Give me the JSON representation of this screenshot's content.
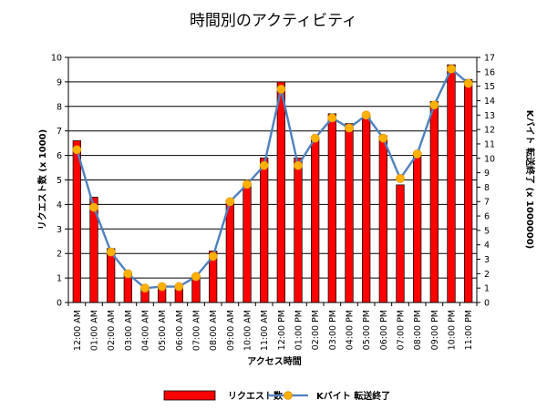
{
  "chart_data": {
    "type": "bar",
    "title": "時間別のアクティビティ",
    "xlabel": "アクセス時間",
    "ylabel": "リクエスト数 (x 1000)",
    "y2label": "Kバイト 転送終了 (x 1000000)",
    "categories": [
      "12:00 AM",
      "01:00 AM",
      "02:00 AM",
      "03:00 AM",
      "04:00 AM",
      "05:00 AM",
      "06:00 AM",
      "07:00 AM",
      "08:00 AM",
      "09:00 AM",
      "10:00 AM",
      "11:00 AM",
      "12:00 PM",
      "01:00 PM",
      "02:00 PM",
      "03:00 PM",
      "04:00 PM",
      "05:00 PM",
      "06:00 PM",
      "07:00 PM",
      "08:00 PM",
      "09:00 PM",
      "10:00 PM",
      "11:00 PM"
    ],
    "ylim": [
      0,
      10
    ],
    "y2lim": [
      0,
      17
    ],
    "yticks": [
      "0",
      "1",
      "2",
      "3",
      "4",
      "5",
      "6",
      "7",
      "8",
      "9",
      "10"
    ],
    "y2ticks": [
      "0",
      "1",
      "2",
      "3",
      "4",
      "5",
      "6",
      "7",
      "8",
      "9",
      "10",
      "11",
      "12",
      "13",
      "14",
      "15",
      "16",
      "17"
    ],
    "grid": true,
    "legend_position": "bottom",
    "series": [
      {
        "name": "リクエスト数",
        "type": "bar",
        "axis": "left",
        "color": "#ff0000",
        "values": [
          6.6,
          4.3,
          2.2,
          1.2,
          0.6,
          0.6,
          0.6,
          1.1,
          2.1,
          4.1,
          4.8,
          5.9,
          9.0,
          5.9,
          6.7,
          7.7,
          7.3,
          7.6,
          6.8,
          4.8,
          6.1,
          8.2,
          9.7,
          9.1
        ]
      },
      {
        "name": "Kバイト 転送終了",
        "type": "line",
        "axis": "right",
        "color": "#4f81bd",
        "marker_color": "#ffb000",
        "values": [
          10.6,
          6.6,
          3.5,
          2.0,
          1.0,
          1.1,
          1.1,
          1.8,
          3.2,
          7.0,
          8.2,
          9.5,
          14.8,
          9.5,
          11.4,
          12.8,
          12.1,
          13.0,
          11.4,
          8.6,
          10.3,
          13.7,
          16.2,
          15.2
        ]
      }
    ]
  }
}
